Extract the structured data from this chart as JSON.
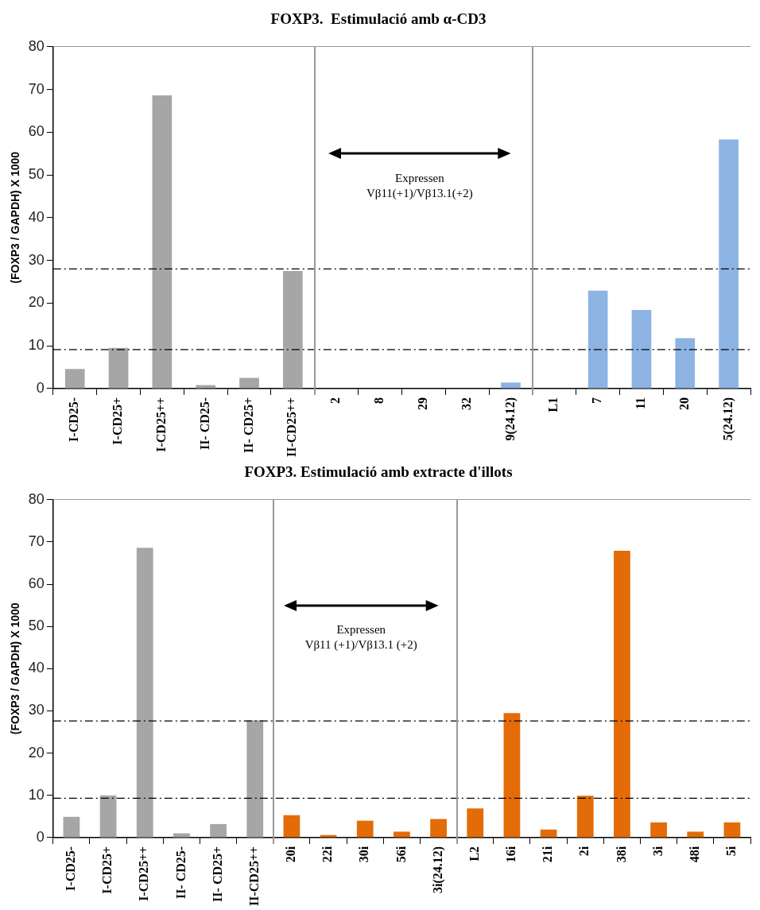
{
  "chart_data": [
    {
      "type": "bar",
      "title": "FOXP3.  Estimulació amb α-CD3",
      "ylabel": "(FOXP3 / GAPDH) X 1000",
      "categories": [
        "I-CD25-",
        "I-CD25+",
        "I-CD25++",
        "II- CD25-",
        "II- CD25+",
        "II-CD25++",
        "2",
        "8",
        "29",
        "32",
        "9(24.12)",
        "L1",
        "7",
        "11",
        "20",
        "5(24.12)"
      ],
      "values": [
        4.6,
        9.5,
        68.6,
        0.8,
        2.5,
        27.5,
        0,
        0,
        0,
        0,
        1.4,
        0,
        22.9,
        18.4,
        11.8,
        58.3
      ],
      "colors": [
        "#a6a6a6",
        "#a6a6a6",
        "#a6a6a6",
        "#a6a6a6",
        "#a6a6a6",
        "#a6a6a6",
        "#8db3e2",
        "#8db3e2",
        "#8db3e2",
        "#8db3e2",
        "#8db3e2",
        "#8db3e2",
        "#8db3e2",
        "#8db3e2",
        "#8db3e2",
        "#8db3e2"
      ],
      "ylim": [
        0,
        80
      ],
      "yticks": [
        0,
        10,
        20,
        30,
        40,
        50,
        60,
        70,
        80
      ],
      "ref_lines": [
        {
          "axis": "y",
          "value": 28,
          "color": "#000000",
          "line_style": "dashed"
        },
        {
          "axis": "y",
          "value": 9.1,
          "color": "#000000",
          "line_style": "dashed"
        }
      ],
      "annotations": [
        "Expressen\nVβ11(+1)/Vβ13.1(+2)"
      ]
    },
    {
      "type": "bar",
      "title": "FOXP3. Estimulació amb extracte d'illots",
      "ylabel": "(FOXP3 / GAPDH) X 1000",
      "categories": [
        "I-CD25-",
        "I-CD25+",
        "I-CD25++",
        "II- CD25-",
        "II- CD25+",
        "II-CD25++",
        "20i",
        "22i",
        "30i",
        "56i",
        "3i(24.12)",
        "L2",
        "16i",
        "21i",
        "2i",
        "38i",
        "3i",
        "48i",
        "5i"
      ],
      "values": [
        4.9,
        10,
        68.6,
        1,
        3.2,
        27.8,
        5.3,
        0.6,
        4,
        1.4,
        4.4,
        6.9,
        29.5,
        1.9,
        9.9,
        67.9,
        3.6,
        1.4,
        3.6
      ],
      "colors": [
        "#a6a6a6",
        "#a6a6a6",
        "#a6a6a6",
        "#a6a6a6",
        "#a6a6a6",
        "#a6a6a6",
        "#e36c09",
        "#e36c09",
        "#e36c09",
        "#e36c09",
        "#e36c09",
        "#e36c09",
        "#e36c09",
        "#e36c09",
        "#e36c09",
        "#e36c09",
        "#e36c09",
        "#e36c09",
        "#e36c09"
      ],
      "ylim": [
        0,
        80
      ],
      "yticks": [
        0,
        10,
        20,
        30,
        40,
        50,
        60,
        70,
        80
      ],
      "ref_lines": [
        {
          "axis": "y",
          "value": 27.6,
          "color": "#000000",
          "line_style": "dashed"
        },
        {
          "axis": "y",
          "value": 9.3,
          "color": "#000000",
          "line_style": "dashed"
        }
      ],
      "annotations": [
        "Expressen\nVβ11 (+1)/Vβ13.1 (+2)"
      ]
    }
  ]
}
